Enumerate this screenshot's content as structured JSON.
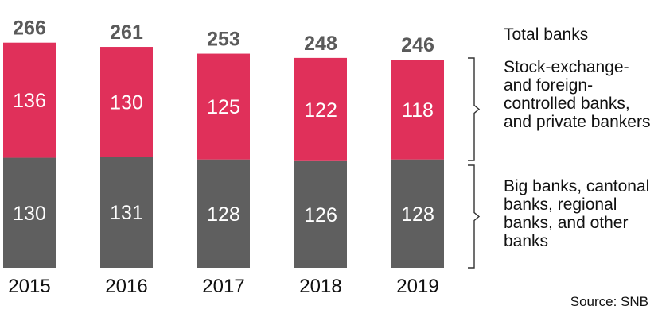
{
  "chart_data": {
    "type": "bar",
    "stacked": true,
    "categories": [
      "2015",
      "2016",
      "2017",
      "2018",
      "2019"
    ],
    "series": [
      {
        "name": "Big banks, cantonal banks, regional banks, and other banks",
        "values": [
          130,
          131,
          128,
          126,
          128
        ],
        "color": "#5f5f5f"
      },
      {
        "name": "Stock-exchange- and foreign-controlled banks, and private bankers",
        "values": [
          136,
          130,
          125,
          122,
          118
        ],
        "color": "#e0305a"
      }
    ],
    "totals": [
      266,
      261,
      253,
      248,
      246
    ],
    "totals_label": "Total banks",
    "source": "Source: SNB",
    "grid": false
  },
  "colors": {
    "bottom": "#5f5f5f",
    "top": "#e0305a",
    "total_text": "#5a5a5a",
    "bracket": "#333333"
  }
}
